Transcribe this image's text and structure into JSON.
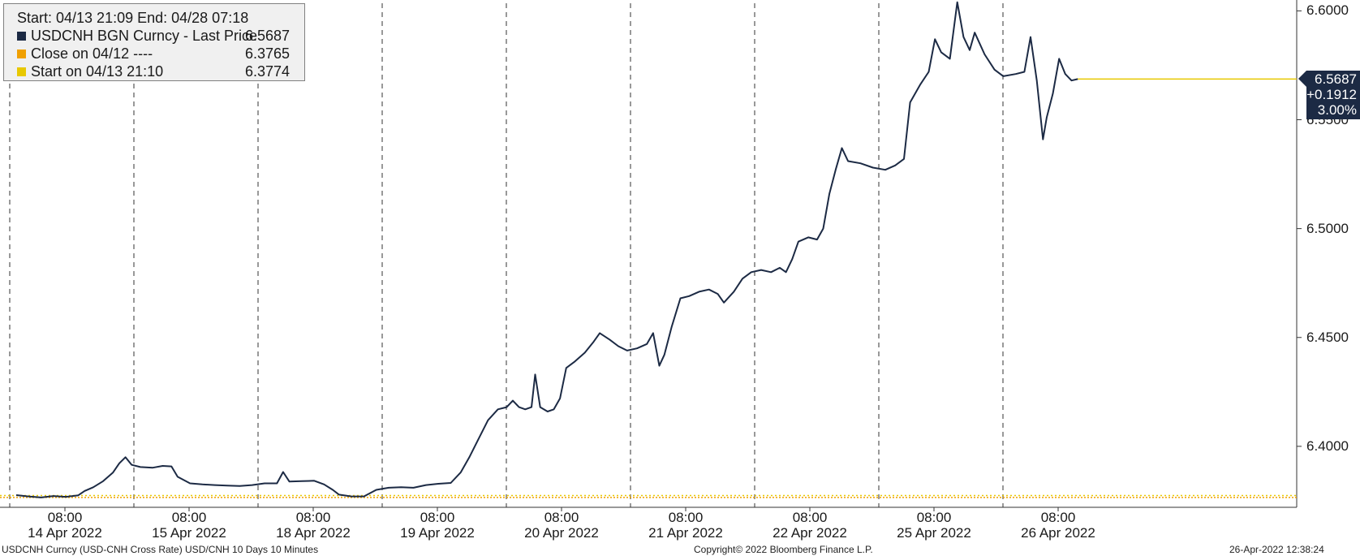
{
  "legend": {
    "header": "Start: 04/13 21:09 End: 04/28 07:18",
    "entries": [
      {
        "label": "USDCNH BGN Curncy - Last Price",
        "value": "6.5687",
        "color": "#1c2a44"
      },
      {
        "label": "Close on 04/12 ----",
        "value": "6.3765",
        "color": "#f0a000"
      },
      {
        "label": "Start on 04/13 21:10",
        "value": "6.3774",
        "color": "#e8c800"
      }
    ]
  },
  "last_price_box": {
    "price": "6.5687",
    "change": "+0.1912",
    "pct": "3.00%"
  },
  "footer": {
    "left": "USDCNH Curncy (USD-CNH Cross Rate) USD/CNH 10 Days 10 Minutes",
    "center": "Copyright© 2022 Bloomberg Finance L.P.",
    "right": "26-Apr-2022 12:38:24"
  },
  "chart_data": {
    "type": "line",
    "title": "",
    "xlabel": "",
    "ylabel": "",
    "ylim": [
      6.372,
      6.6035
    ],
    "yticks": [
      "6.4000",
      "6.4500",
      "6.5000",
      "6.5500",
      "6.6000"
    ],
    "ytick_values": [
      6.4,
      6.45,
      6.5,
      6.55,
      6.6
    ],
    "xticks": [
      {
        "time": "08:00",
        "date": "14 Apr 2022"
      },
      {
        "time": "08:00",
        "date": "15 Apr 2022"
      },
      {
        "time": "08:00",
        "date": "18 Apr 2022"
      },
      {
        "time": "08:00",
        "date": "19 Apr 2022"
      },
      {
        "time": "08:00",
        "date": "20 Apr 2022"
      },
      {
        "time": "08:00",
        "date": "21 Apr 2022"
      },
      {
        "time": "08:00",
        "date": "22 Apr 2022"
      },
      {
        "time": "08:00",
        "date": "25 Apr 2022"
      },
      {
        "time": "08:00",
        "date": "26 Apr 2022"
      }
    ],
    "session_count": 10,
    "grid": "vertical dashed session separators",
    "reference_lines": [
      {
        "name": "Close on 04/12",
        "value": 6.3765,
        "color": "#f0a000"
      },
      {
        "name": "Start on 04/13 21:10",
        "value": 6.3774,
        "color": "#e8c800"
      },
      {
        "name": "Last Price",
        "value": 6.5687,
        "color": "#e8c800"
      }
    ],
    "series": [
      {
        "name": "USDCNH BGN Curncy - Last Price",
        "color": "#1c2a44",
        "points": [
          [
            0.0,
            6.3776
          ],
          [
            0.1,
            6.377
          ],
          [
            0.2,
            6.3765
          ],
          [
            0.3,
            6.3772
          ],
          [
            0.4,
            6.3768
          ],
          [
            0.5,
            6.3775
          ],
          [
            0.55,
            6.3795
          ],
          [
            0.62,
            6.3812
          ],
          [
            0.7,
            6.384
          ],
          [
            0.78,
            6.388
          ],
          [
            0.83,
            6.3922
          ],
          [
            0.88,
            6.395
          ],
          [
            0.93,
            6.3915
          ],
          [
            1.0,
            6.3905
          ],
          [
            1.1,
            6.3902
          ],
          [
            1.18,
            6.391
          ],
          [
            1.25,
            6.3908
          ],
          [
            1.3,
            6.386
          ],
          [
            1.4,
            6.383
          ],
          [
            1.5,
            6.3825
          ],
          [
            1.6,
            6.3822
          ],
          [
            1.7,
            6.382
          ],
          [
            1.8,
            6.3818
          ],
          [
            1.9,
            6.3822
          ],
          [
            2.0,
            6.383
          ],
          [
            2.1,
            6.383
          ],
          [
            2.15,
            6.3882
          ],
          [
            2.2,
            6.3838
          ],
          [
            2.3,
            6.384
          ],
          [
            2.4,
            6.3842
          ],
          [
            2.48,
            6.3825
          ],
          [
            2.55,
            6.38
          ],
          [
            2.6,
            6.3778
          ],
          [
            2.7,
            6.377
          ],
          [
            2.8,
            6.377
          ],
          [
            2.9,
            6.38
          ],
          [
            3.0,
            6.381
          ],
          [
            3.1,
            6.3812
          ],
          [
            3.2,
            6.381
          ],
          [
            3.3,
            6.3822
          ],
          [
            3.4,
            6.3828
          ],
          [
            3.5,
            6.3832
          ],
          [
            3.58,
            6.388
          ],
          [
            3.65,
            6.395
          ],
          [
            3.72,
            6.403
          ],
          [
            3.8,
            6.412
          ],
          [
            3.88,
            6.417
          ],
          [
            3.95,
            6.418
          ],
          [
            4.0,
            6.421
          ],
          [
            4.05,
            6.418
          ],
          [
            4.1,
            6.417
          ],
          [
            4.15,
            6.418
          ],
          [
            4.18,
            6.433
          ],
          [
            4.22,
            6.418
          ],
          [
            4.28,
            6.416
          ],
          [
            4.33,
            6.417
          ],
          [
            4.38,
            6.422
          ],
          [
            4.43,
            6.436
          ],
          [
            4.5,
            6.439
          ],
          [
            4.58,
            6.443
          ],
          [
            4.65,
            6.448
          ],
          [
            4.7,
            6.452
          ],
          [
            4.78,
            6.449
          ],
          [
            4.85,
            6.446
          ],
          [
            4.92,
            6.444
          ],
          [
            5.0,
            6.445
          ],
          [
            5.08,
            6.447
          ],
          [
            5.13,
            6.452
          ],
          [
            5.18,
            6.437
          ],
          [
            5.22,
            6.442
          ],
          [
            5.28,
            6.455
          ],
          [
            5.35,
            6.468
          ],
          [
            5.42,
            6.469
          ],
          [
            5.5,
            6.471
          ],
          [
            5.58,
            6.472
          ],
          [
            5.65,
            6.47
          ],
          [
            5.7,
            6.466
          ],
          [
            5.78,
            6.471
          ],
          [
            5.85,
            6.477
          ],
          [
            5.92,
            6.48
          ],
          [
            6.0,
            6.481
          ],
          [
            6.08,
            6.48
          ],
          [
            6.15,
            6.482
          ],
          [
            6.2,
            6.48
          ],
          [
            6.25,
            6.486
          ],
          [
            6.3,
            6.494
          ],
          [
            6.38,
            6.496
          ],
          [
            6.45,
            6.495
          ],
          [
            6.5,
            6.5
          ],
          [
            6.55,
            6.516
          ],
          [
            6.6,
            6.527
          ],
          [
            6.65,
            6.537
          ],
          [
            6.7,
            6.531
          ],
          [
            6.8,
            6.53
          ],
          [
            6.9,
            6.528
          ],
          [
            7.0,
            6.527
          ],
          [
            7.08,
            6.529
          ],
          [
            7.15,
            6.532
          ],
          [
            7.2,
            6.558
          ],
          [
            7.28,
            6.566
          ],
          [
            7.35,
            6.572
          ],
          [
            7.4,
            6.587
          ],
          [
            7.45,
            6.581
          ],
          [
            7.52,
            6.578
          ],
          [
            7.58,
            6.604
          ],
          [
            7.63,
            6.588
          ],
          [
            7.68,
            6.582
          ],
          [
            7.72,
            6.59
          ],
          [
            7.8,
            6.58
          ],
          [
            7.88,
            6.573
          ],
          [
            7.95,
            6.57
          ],
          [
            8.05,
            6.571
          ],
          [
            8.12,
            6.572
          ],
          [
            8.17,
            6.588
          ],
          [
            8.22,
            6.568
          ],
          [
            8.27,
            6.541
          ],
          [
            8.3,
            6.551
          ],
          [
            8.35,
            6.562
          ],
          [
            8.4,
            6.578
          ],
          [
            8.45,
            6.571
          ],
          [
            8.5,
            6.568
          ],
          [
            8.55,
            6.5687
          ]
        ]
      }
    ]
  }
}
